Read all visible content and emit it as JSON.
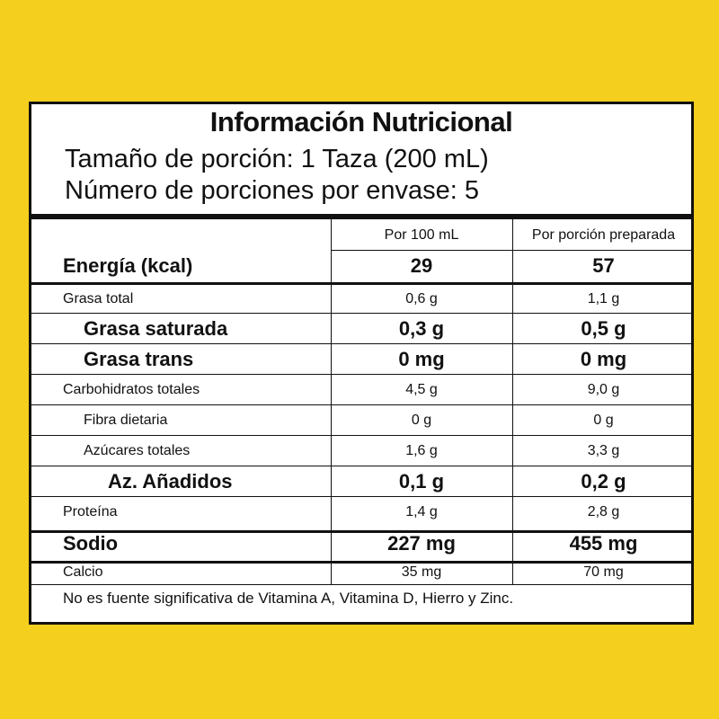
{
  "label": {
    "title": "Información Nutricional",
    "serving_size": "Tamaño de porción: 1 Taza (200 mL)",
    "servings_per_container": "Número de porciones por envase: 5",
    "col1_header": "Por 100 mL",
    "col2_header": "Por porción preparada",
    "energy": {
      "label": "Energía (kcal)",
      "per100": "29",
      "perServing": "57"
    },
    "rows": [
      {
        "label": "Grasa total",
        "per100": "0,6 g",
        "perServing": "1,1 g"
      },
      {
        "label": "Grasa saturada",
        "per100": "0,3 g",
        "perServing": "0,5 g"
      },
      {
        "label": "Grasa trans",
        "per100": "0 mg",
        "perServing": "0 mg"
      },
      {
        "label": "Carbohidratos totales",
        "per100": "4,5 g",
        "perServing": "9,0 g"
      },
      {
        "label": "Fibra dietaria",
        "per100": "0 g",
        "perServing": "0 g"
      },
      {
        "label": "Azúcares totales",
        "per100": "1,6 g",
        "perServing": "3,3 g"
      },
      {
        "label": "Az. Añadidos",
        "per100": "0,1 g",
        "perServing": "0,2 g"
      },
      {
        "label": "Proteína",
        "per100": "1,4 g",
        "perServing": "2,8 g"
      },
      {
        "label": "Sodio",
        "per100": "227 mg",
        "perServing": "455 mg"
      },
      {
        "label": "Calcio",
        "per100": "35 mg",
        "perServing": "70 mg"
      }
    ],
    "footnote": "No es fuente significativa de Vitamina A, Vitamina D, Hierro y Zinc."
  },
  "colors": {
    "background": "#f5cf1d",
    "panel": "#ffffff",
    "ink": "#111111"
  }
}
